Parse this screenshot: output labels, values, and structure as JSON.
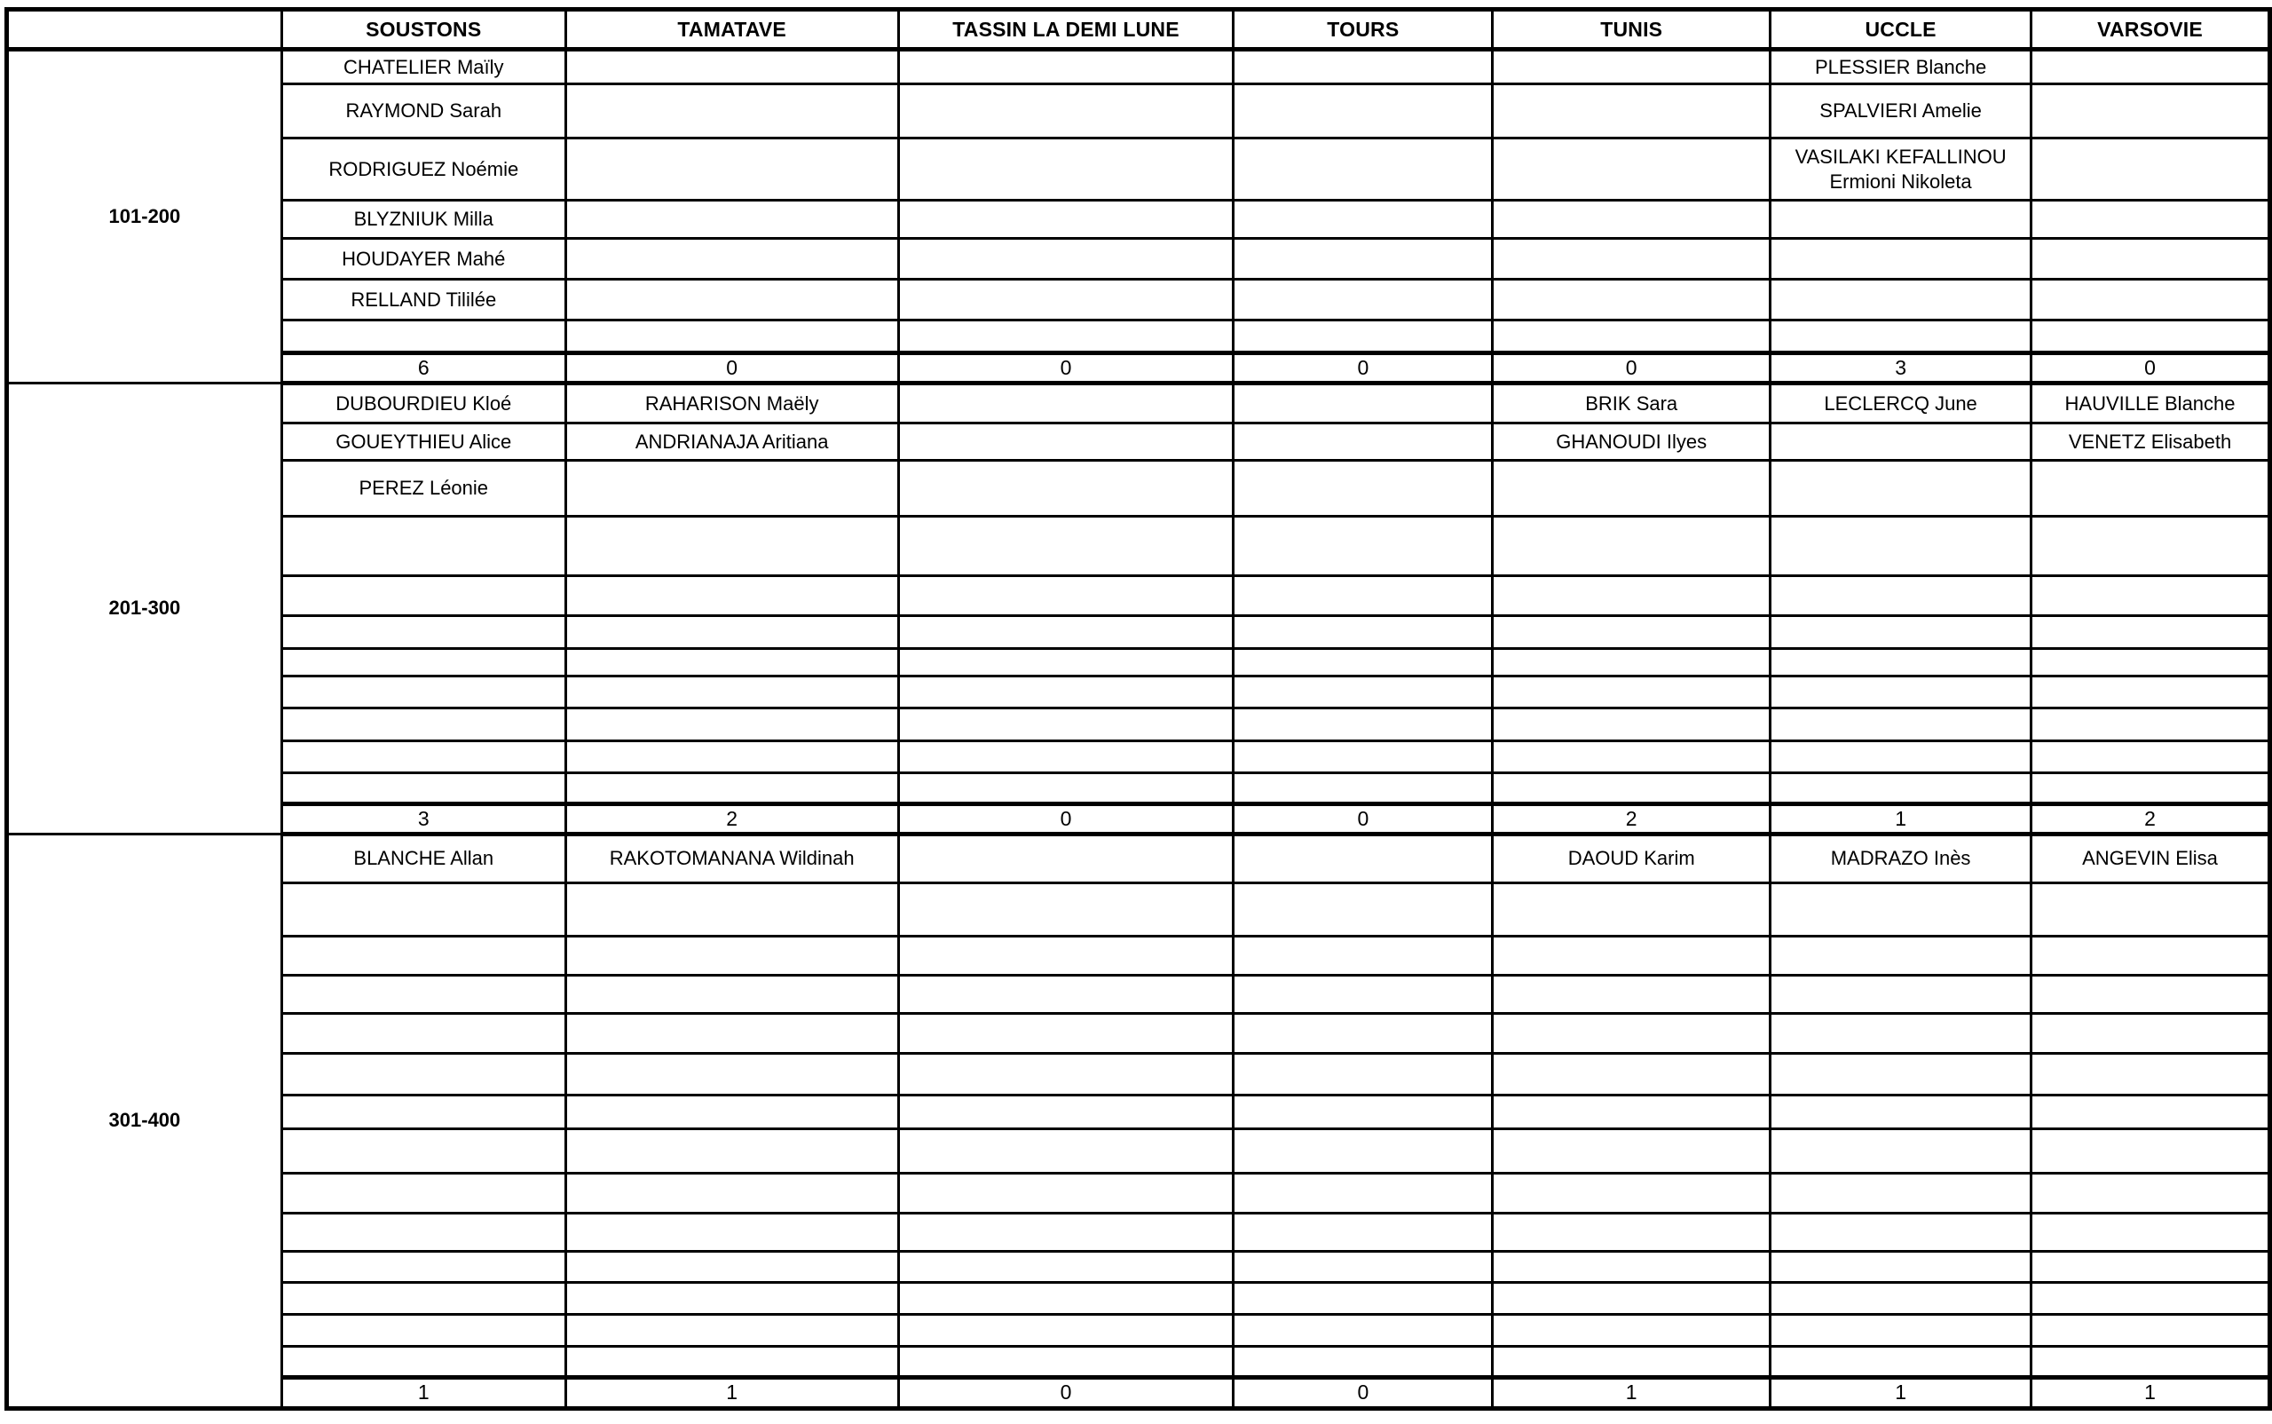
{
  "table": {
    "columns": [
      "",
      "SOUSTONS",
      "TAMATAVE",
      "TASSIN LA DEMI LUNE",
      "TOURS",
      "TUNIS",
      "UCCLE",
      "VARSOVIE"
    ],
    "groups": [
      {
        "label": "101-200",
        "rows": [
          [
            "CHATELIER Maïly",
            "",
            "",
            "",
            "",
            "PLESSIER Blanche",
            ""
          ],
          [
            "RAYMOND Sarah",
            "",
            "",
            "",
            "",
            "SPALVIERI Amelie",
            ""
          ],
          [
            "RODRIGUEZ Noémie",
            "",
            "",
            "",
            "",
            "VASILAKI KEFALLINOU Ermioni Nikoleta",
            ""
          ],
          [
            "BLYZNIUK Milla",
            "",
            "",
            "",
            "",
            "",
            ""
          ],
          [
            "HOUDAYER Mahé",
            "",
            "",
            "",
            "",
            "",
            ""
          ],
          [
            "RELLAND Tililée",
            "",
            "",
            "",
            "",
            "",
            ""
          ],
          [
            "",
            "",
            "",
            "",
            "",
            "",
            ""
          ]
        ],
        "totals": [
          "6",
          "0",
          "0",
          "0",
          "0",
          "3",
          "0"
        ]
      },
      {
        "label": "201-300",
        "rows": [
          [
            "DUBOURDIEU Kloé",
            "RAHARISON Maëly",
            "",
            "",
            "BRIK Sara",
            "LECLERCQ June",
            "HAUVILLE Blanche"
          ],
          [
            "GOUEYTHIEU Alice",
            "ANDRIANAJA Aritiana",
            "",
            "",
            "GHANOUDI Ilyes",
            "",
            "VENETZ Elisabeth"
          ],
          [
            "PEREZ Léonie",
            "",
            "",
            "",
            "",
            "",
            ""
          ],
          [
            "",
            "",
            "",
            "",
            "",
            "",
            ""
          ],
          [
            "",
            "",
            "",
            "",
            "",
            "",
            ""
          ],
          [
            "",
            "",
            "",
            "",
            "",
            "",
            ""
          ],
          [
            "",
            "",
            "",
            "",
            "",
            "",
            ""
          ],
          [
            "",
            "",
            "",
            "",
            "",
            "",
            ""
          ],
          [
            "",
            "",
            "",
            "",
            "",
            "",
            ""
          ],
          [
            "",
            "",
            "",
            "",
            "",
            "",
            ""
          ],
          [
            "",
            "",
            "",
            "",
            "",
            "",
            ""
          ]
        ],
        "totals": [
          "3",
          "2",
          "0",
          "0",
          "2",
          "1",
          "2"
        ]
      },
      {
        "label": "301-400",
        "rows": [
          [
            "BLANCHE Allan",
            "RAKOTOMANANA Wildinah",
            "",
            "",
            "DAOUD Karim",
            "MADRAZO Inès",
            "ANGEVIN Elisa"
          ],
          [
            "",
            "",
            "",
            "",
            "",
            "",
            ""
          ],
          [
            "",
            "",
            "",
            "",
            "",
            "",
            ""
          ],
          [
            "",
            "",
            "",
            "",
            "",
            "",
            ""
          ],
          [
            "",
            "",
            "",
            "",
            "",
            "",
            ""
          ],
          [
            "",
            "",
            "",
            "",
            "",
            "",
            ""
          ],
          [
            "",
            "",
            "",
            "",
            "",
            "",
            ""
          ],
          [
            "",
            "",
            "",
            "",
            "",
            "",
            ""
          ],
          [
            "",
            "",
            "",
            "",
            "",
            "",
            ""
          ],
          [
            "",
            "",
            "",
            "",
            "",
            "",
            ""
          ],
          [
            "",
            "",
            "",
            "",
            "",
            "",
            ""
          ],
          [
            "",
            "",
            "",
            "",
            "",
            "",
            ""
          ],
          [
            "",
            "",
            "",
            "",
            "",
            "",
            ""
          ],
          [
            "",
            "",
            "",
            "",
            "",
            "",
            ""
          ]
        ],
        "totals": [
          "1",
          "1",
          "0",
          "0",
          "1",
          "1",
          "1"
        ]
      }
    ],
    "colors": {
      "border": "#000000",
      "text": "#000000",
      "background": "#ffffff"
    }
  }
}
